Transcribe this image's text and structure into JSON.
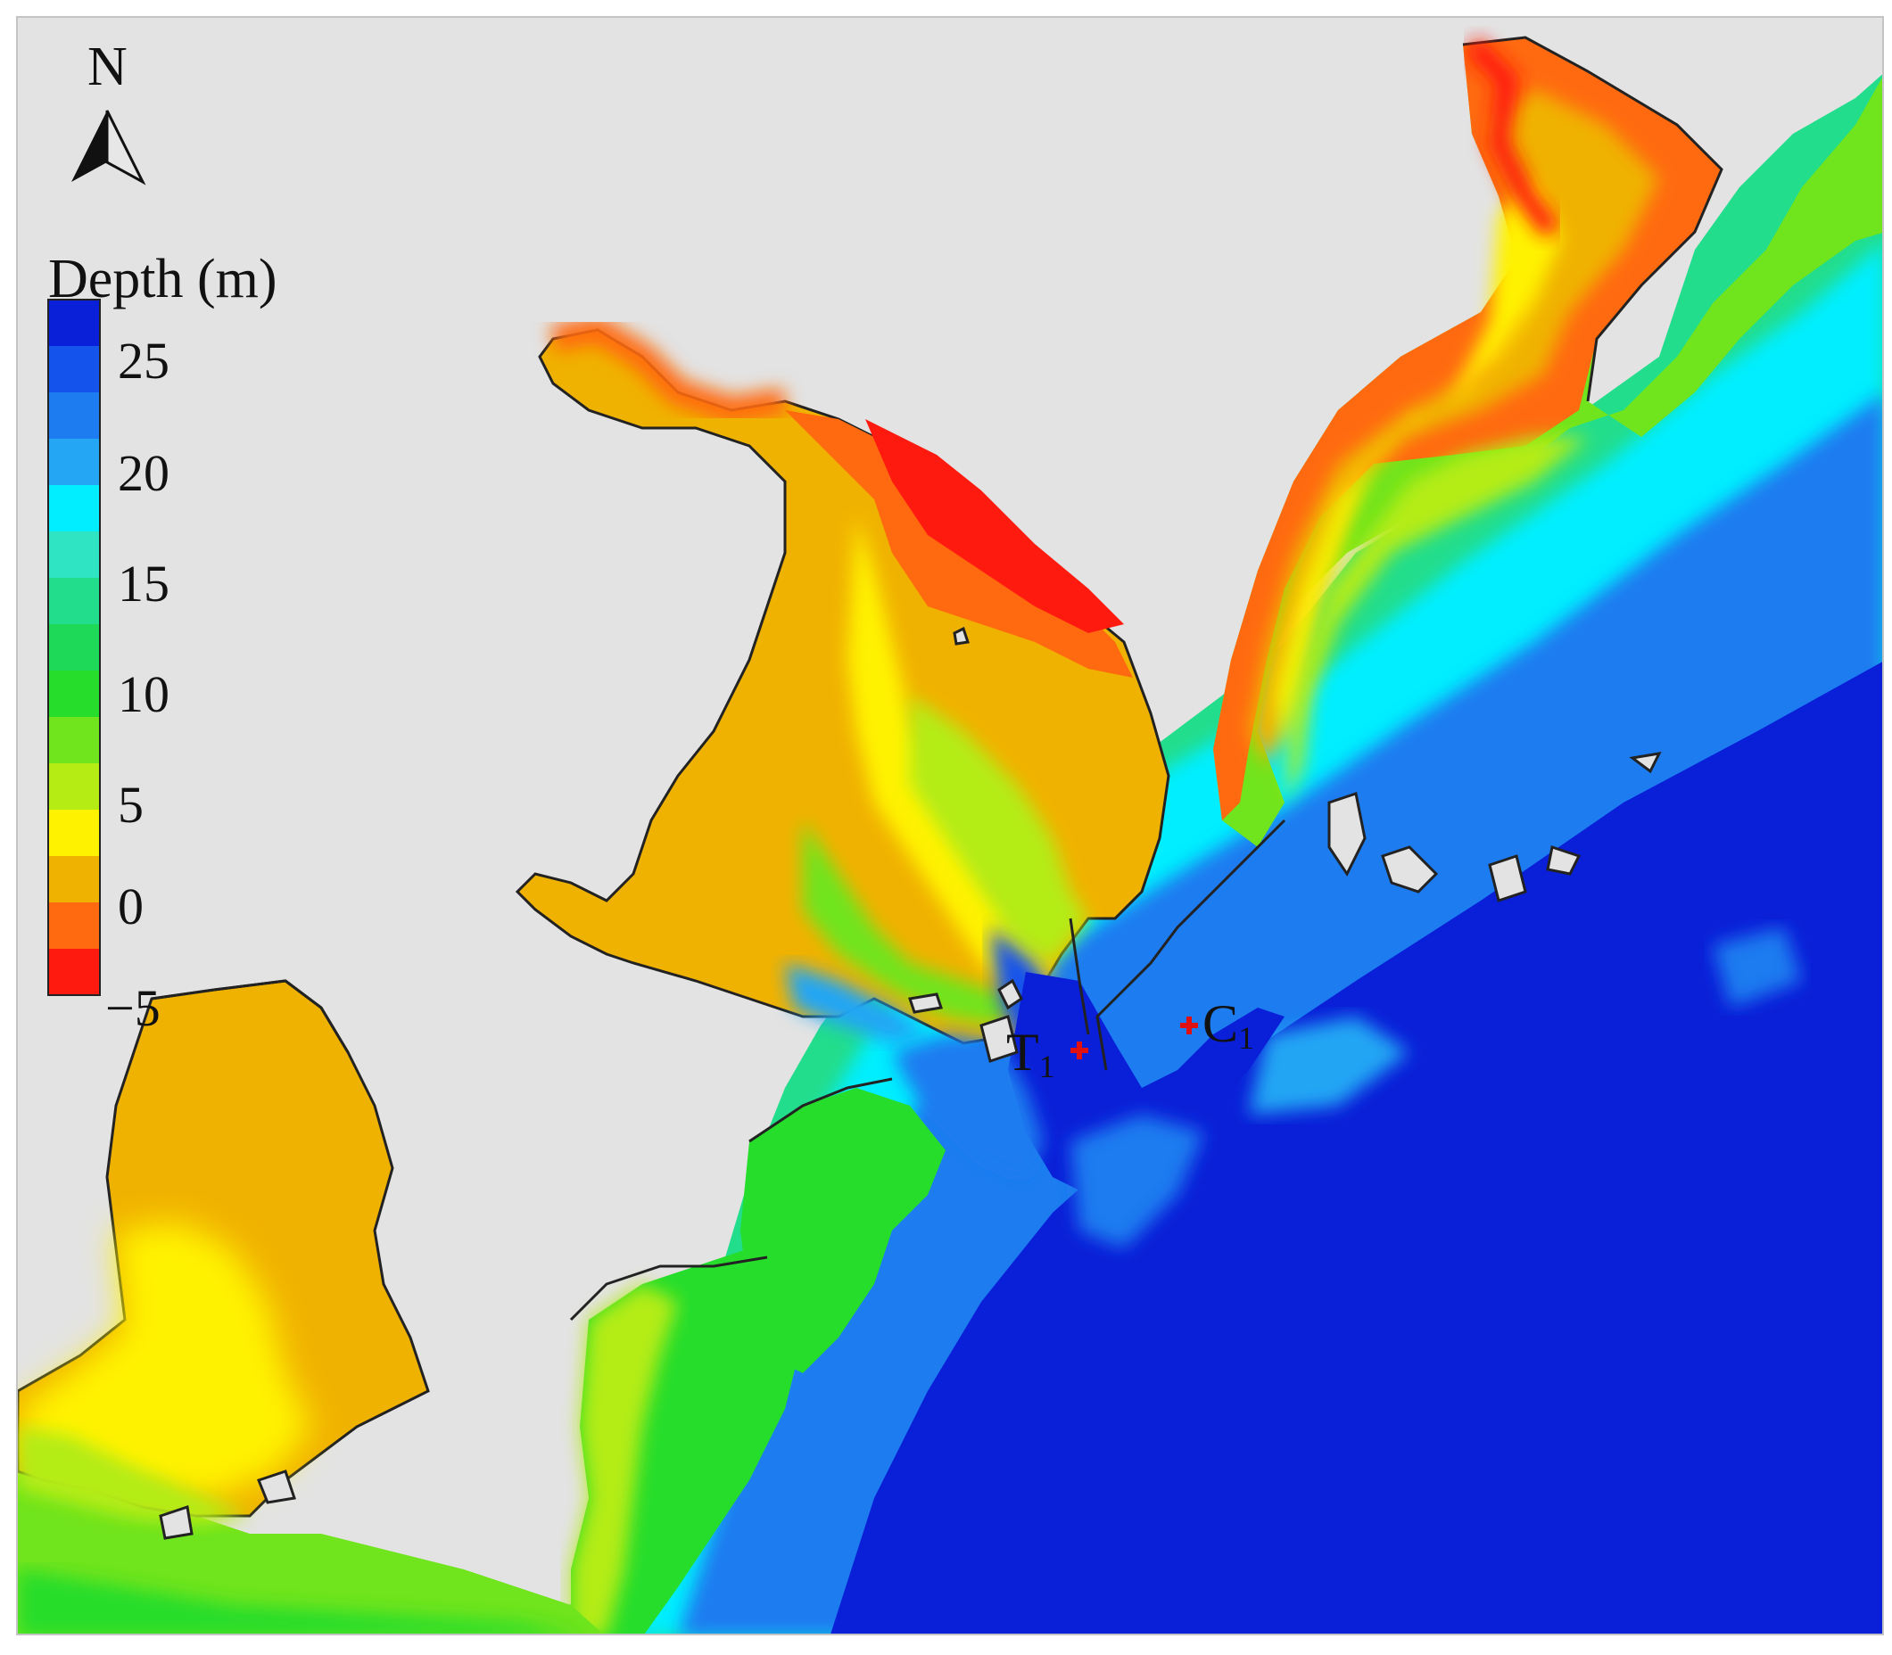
{
  "north_arrow": {
    "label": "N"
  },
  "legend": {
    "title": "Depth (m)",
    "tick_labels": [
      "25",
      "20",
      "15",
      "10",
      "5",
      "0",
      "−5"
    ],
    "colors_deep_to_shallow": [
      "#0a1fd8",
      "#1453ec",
      "#1c7cf0",
      "#24a6f4",
      "#00eeff",
      "#2ee4c2",
      "#22dd8c",
      "#1ed858",
      "#26dd2c",
      "#70e41c",
      "#b4ec14",
      "#fff200",
      "#f0b200",
      "#ff6a10",
      "#ff1a10"
    ]
  },
  "stations": [
    {
      "id": "T",
      "sub": "1",
      "marker_color": "#e01010"
    },
    {
      "id": "C",
      "sub": "1",
      "marker_color": "#e01010"
    }
  ],
  "colors": {
    "land": "#e3e3e3",
    "deep_water": "#0a1fd8",
    "coastline": "#222222"
  }
}
